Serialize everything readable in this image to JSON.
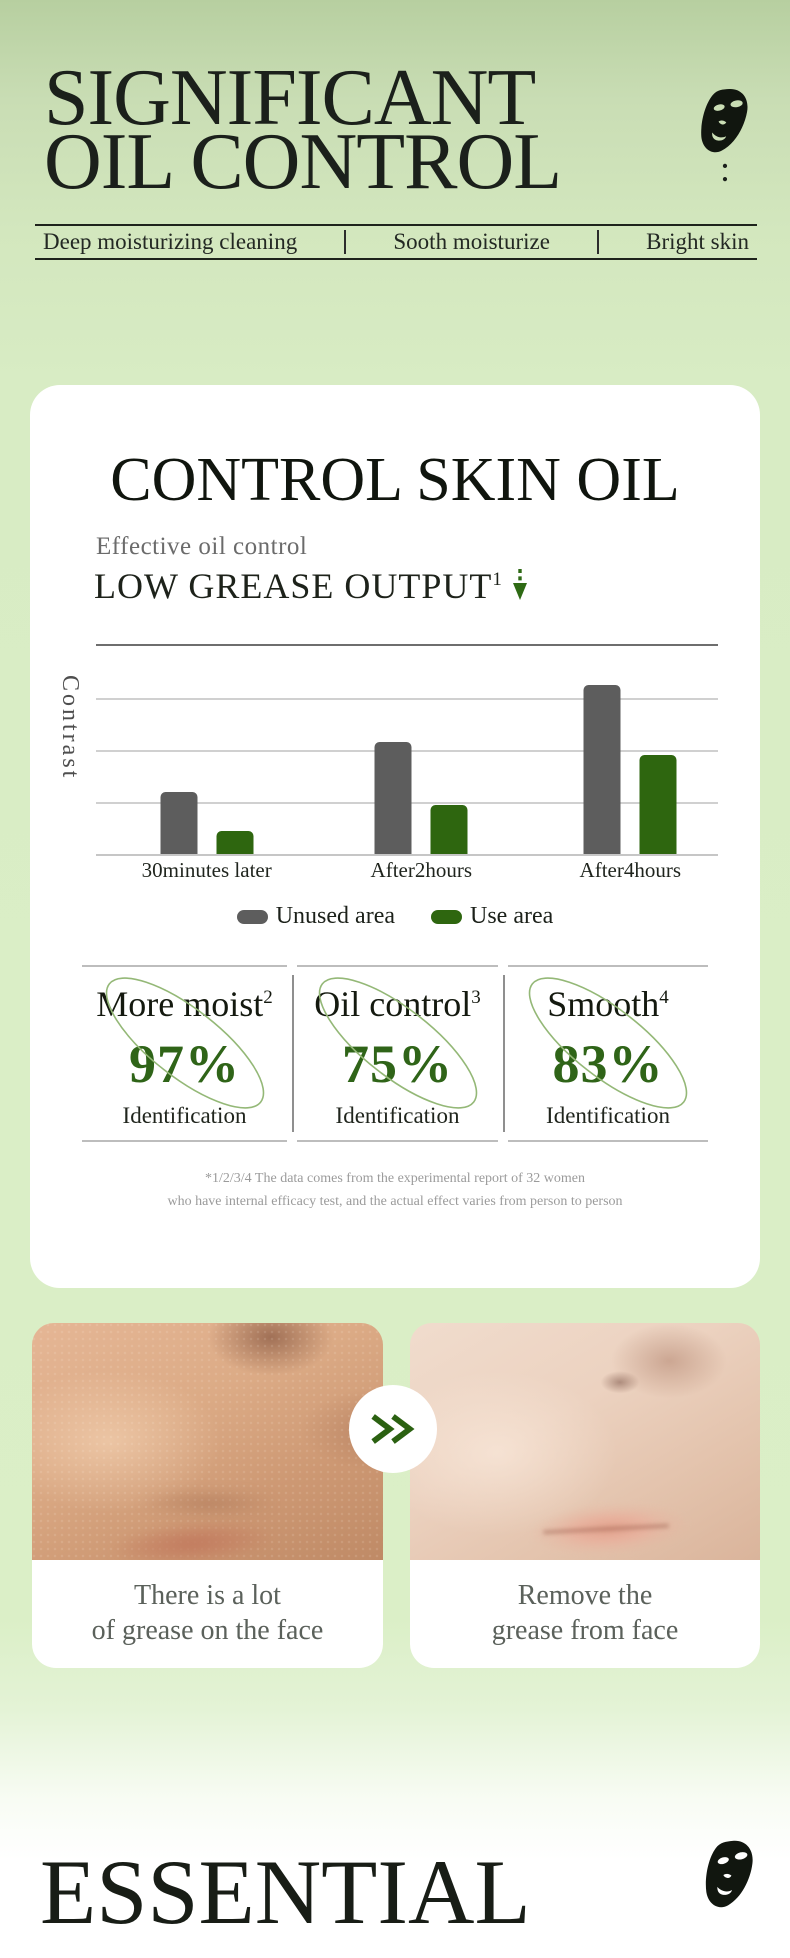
{
  "header": {
    "title_line1": "SIGNIFICANT",
    "title_line2": "OIL CONTROL",
    "colon": ":",
    "icon": "face-mask-icon"
  },
  "feature_bar": {
    "items": [
      "Deep moisturizing cleaning",
      "Sooth moisturize",
      "Bright skin"
    ]
  },
  "card": {
    "heading": "CONTROL SKIN OIL",
    "sub1": "Effective oil control",
    "sub2": "LOW GREASE OUTPUT",
    "sub2_sup": "1",
    "arrow_icon": "dashed-down-arrow-icon",
    "footnote_line1": "*1/2/3/4 The data comes from the experimental report of 32 women",
    "footnote_line2": "who have internal efficacy test, and the actual effect varies from person to person"
  },
  "chart_data": {
    "type": "bar",
    "title": "",
    "xlabel": "",
    "ylabel": "Contrast",
    "categories": [
      "30minutes later",
      "After2hours",
      "After4hours"
    ],
    "series": [
      {
        "name": "Unused area",
        "color": "#5d5d5d",
        "values": [
          1.2,
          2.15,
          3.25
        ]
      },
      {
        "name": "Use area",
        "color": "#2e660f",
        "values": [
          0.45,
          0.95,
          1.9
        ]
      }
    ],
    "ylim": [
      0,
      4
    ],
    "gridlines": true,
    "legend_position": "bottom",
    "group_centers_pct": [
      17.8,
      52.3,
      85.9
    ]
  },
  "stats": [
    {
      "label": "More moist",
      "sup": "2",
      "value": "97%",
      "caption": "Identification"
    },
    {
      "label": "Oil control",
      "sup": "3",
      "value": "75%",
      "caption": "Identification"
    },
    {
      "label": "Smooth",
      "sup": "4",
      "value": "83%",
      "caption": "Identification"
    }
  ],
  "comparison": {
    "arrow_icon": "double-chevron-icon",
    "before_caption_line1": "There is a lot",
    "before_caption_line2": "of grease on the face",
    "after_caption_line1": "Remove the",
    "after_caption_line2": "grease from face"
  },
  "footer": {
    "title": "ESSENTIAL",
    "icon": "face-mask-icon"
  },
  "colors": {
    "accent_green_dark": "#2e660f",
    "stat_green": "#2f6418",
    "ellipse_green": "#94b877",
    "bar_gray": "#5d5d5d",
    "background_green": "#d8ecc4",
    "text_dark": "#1b201b",
    "text_gray": "#6b6b6b",
    "footnote_gray": "#9b9b9b"
  }
}
